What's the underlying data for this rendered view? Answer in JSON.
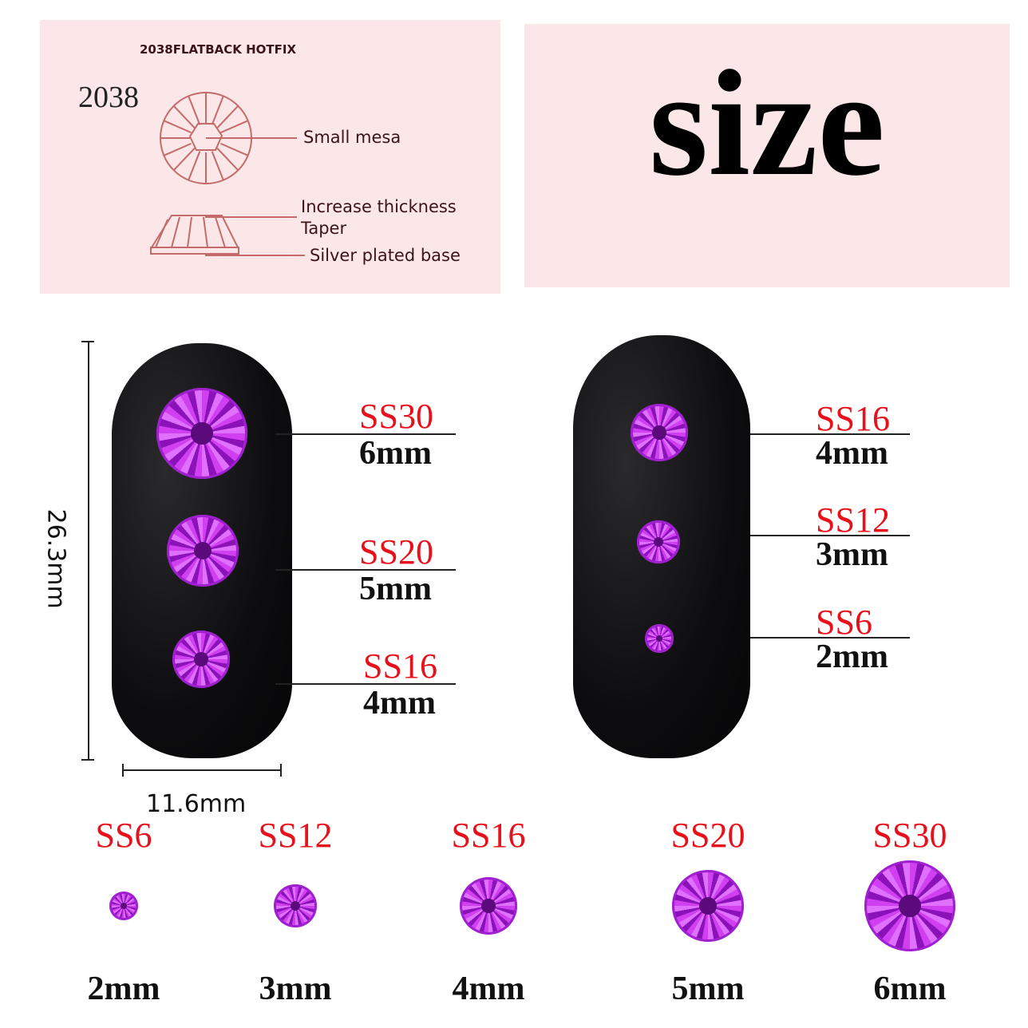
{
  "diagram": {
    "header": "2038FLATBACK HOTFIX",
    "model": "2038",
    "labels": [
      "Small mesa",
      "Increase thickness",
      "Taper",
      "Silver plated base"
    ]
  },
  "title": "size",
  "colors": {
    "panel": "#fbe7e7",
    "size_code": "#e8101a",
    "stone": "#c030e8"
  },
  "nail_dimensions": {
    "height": "26.3mm",
    "width": "11.6mm"
  },
  "left_nail": [
    {
      "code": "SS30",
      "mm": "6mm"
    },
    {
      "code": "SS20",
      "mm": "5mm"
    },
    {
      "code": "SS16",
      "mm": "4mm"
    }
  ],
  "right_nail": [
    {
      "code": "SS16",
      "mm": "4mm"
    },
    {
      "code": "SS12",
      "mm": "3mm"
    },
    {
      "code": "SS6",
      "mm": "2mm"
    }
  ],
  "sizes": [
    {
      "code": "SS6",
      "mm": "2mm"
    },
    {
      "code": "SS12",
      "mm": "3mm"
    },
    {
      "code": "SS16",
      "mm": "4mm"
    },
    {
      "code": "SS20",
      "mm": "5mm"
    },
    {
      "code": "SS30",
      "mm": "6mm"
    }
  ]
}
